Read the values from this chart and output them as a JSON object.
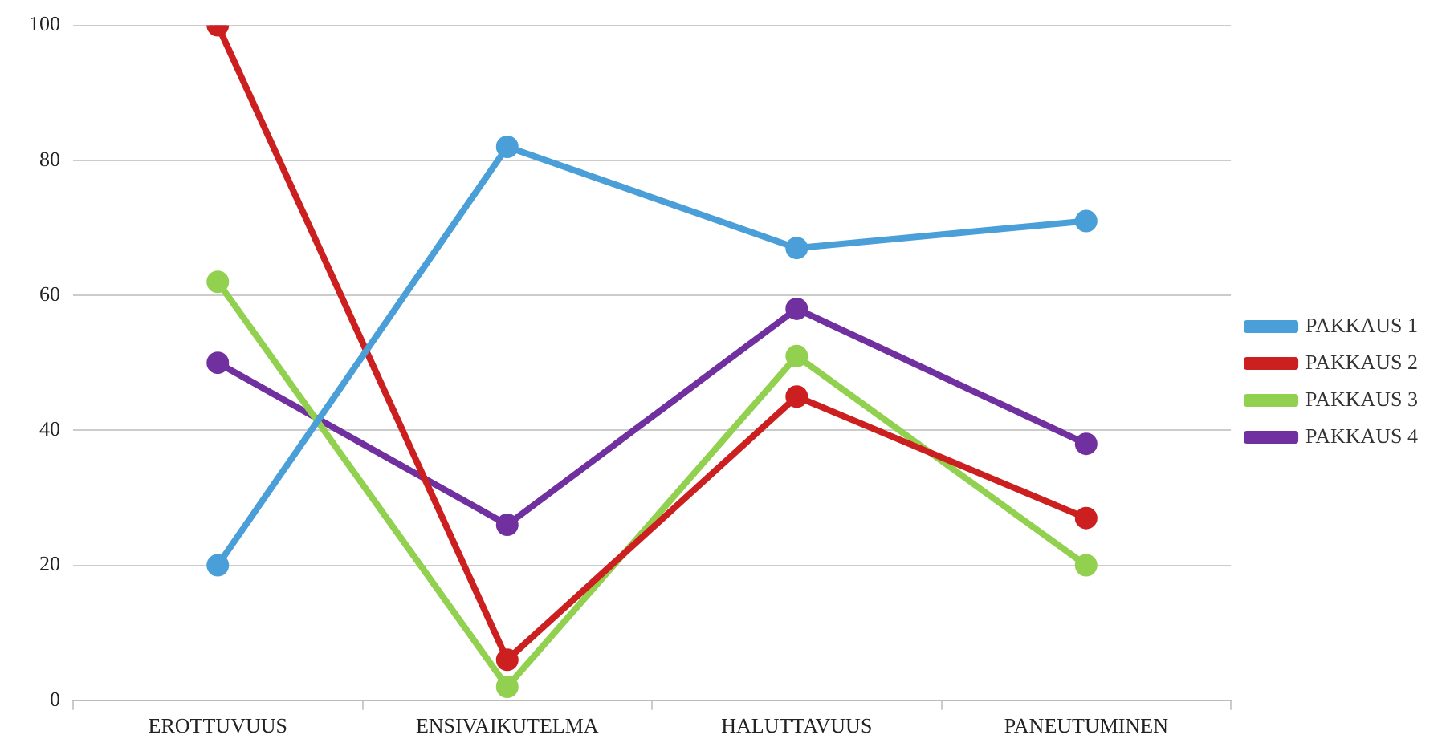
{
  "chart_data": {
    "type": "line",
    "categories": [
      "EROTTUVUUS",
      "ENSIVAIKUTELMA",
      "HALUTTAVUUS",
      "PANEUTUMINEN"
    ],
    "series": [
      {
        "name": "PAKKAUS 1",
        "color": "#4a9fd8",
        "values": [
          20,
          82,
          67,
          71
        ]
      },
      {
        "name": "PAKKAUS 2",
        "color": "#cc1f1f",
        "values": [
          100,
          6,
          45,
          27
        ]
      },
      {
        "name": "PAKKAUS 3",
        "color": "#92d050",
        "values": [
          62,
          2,
          51,
          20
        ]
      },
      {
        "name": "PAKKAUS 4",
        "color": "#7030a0",
        "values": [
          50,
          26,
          58,
          38
        ]
      }
    ],
    "ylim": [
      0,
      100
    ],
    "yticks": [
      0,
      20,
      40,
      60,
      80,
      100
    ],
    "grid": "y",
    "legend": "right",
    "marker": "circle",
    "line_style": "solid"
  }
}
